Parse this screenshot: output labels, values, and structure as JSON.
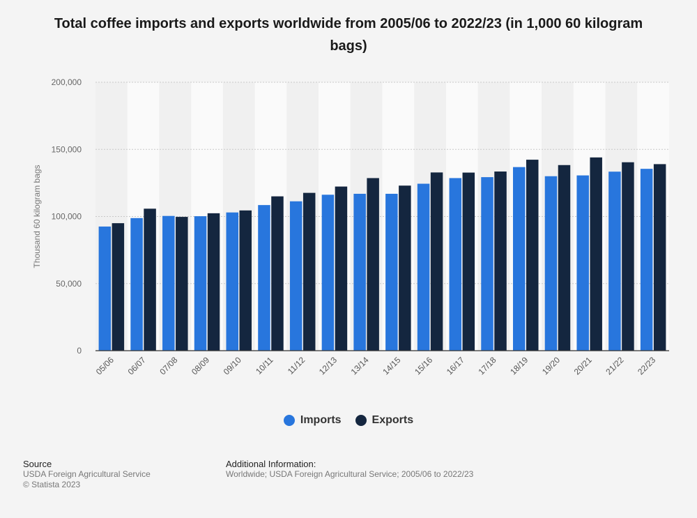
{
  "chart_data": {
    "type": "bar",
    "title": "Total coffee imports and exports worldwide from 2005/06 to 2022/23 (in 1,000 60 kilogram bags)",
    "xlabel": "",
    "ylabel": "Thousand 60 kilogram bags",
    "ylim": [
      0,
      200000
    ],
    "yticks": [
      0,
      50000,
      100000,
      150000,
      200000
    ],
    "ytick_labels": [
      "0",
      "50,000",
      "100,000",
      "150,000",
      "200,000"
    ],
    "grid": true,
    "legend_position": "bottom",
    "categories": [
      "05/06",
      "06/07",
      "07/08",
      "08/09",
      "09/10",
      "10/11",
      "11/12",
      "12/13",
      "13/14",
      "14/15",
      "15/16",
      "16/17",
      "17/18",
      "18/19",
      "19/20",
      "20/21",
      "21/22",
      "22/23"
    ],
    "series": [
      {
        "name": "Imports",
        "color": "#2876dd",
        "values": [
          92500,
          98800,
          100400,
          100200,
          103000,
          108500,
          111300,
          116200,
          116900,
          116900,
          124400,
          128600,
          129300,
          136800,
          130000,
          130600,
          133400,
          135500
        ]
      },
      {
        "name": "Exports",
        "color": "#14263f",
        "values": [
          95000,
          105800,
          99700,
          102400,
          104500,
          115000,
          117600,
          122300,
          128600,
          123000,
          132800,
          132700,
          133500,
          142300,
          138300,
          144000,
          140400,
          139000
        ]
      }
    ]
  },
  "footer": {
    "source_heading": "Source",
    "source_text": "USDA Foreign Agricultural Service",
    "copyright": "© Statista 2023",
    "info_heading": "Additional Information:",
    "info_text": "Worldwide; USDA Foreign Agricultural Service; 2005/06 to 2022/23"
  }
}
